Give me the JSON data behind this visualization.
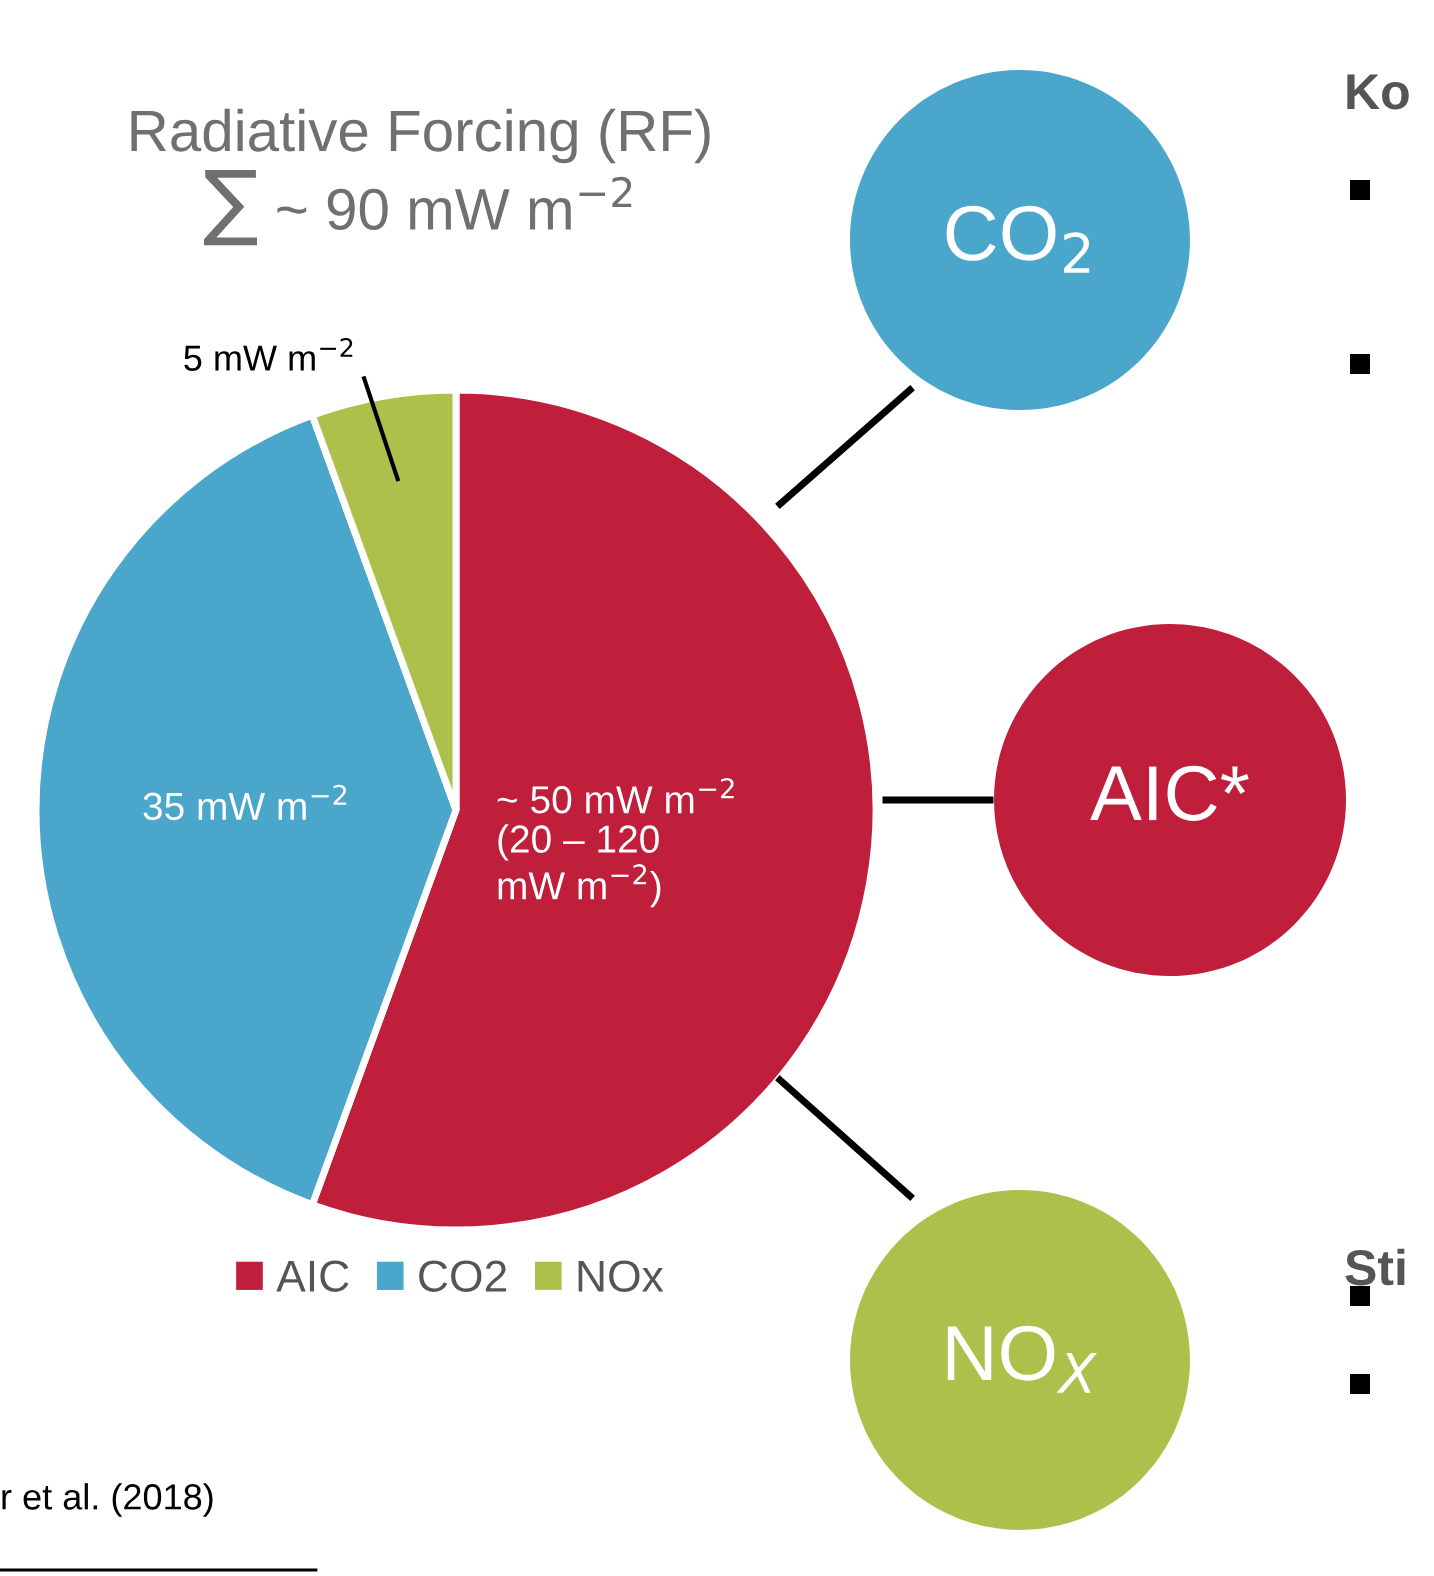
{
  "chart_data": {
    "type": "pie",
    "title": "Radiative Forcing (RF)",
    "subtitle": "∑ ~ 90 mW m$^{−2}$",
    "categories": [
      "AIC",
      "CO2",
      "NOx"
    ],
    "values": [
      50,
      35,
      5
    ],
    "colors": [
      "#c01f3c",
      "#4ba6cc",
      "#adc04b"
    ],
    "value_labels": [
      "~ 50 mW m$^{−2}$\n(20 – 120\nmW m$^{−2}$)",
      "35 mW m$^{−2}$",
      "5 mW m$^{−2}$"
    ],
    "legend": "bottom",
    "annotations": [
      "CO$_{2}$",
      "AIC*",
      "NO$_{X}$",
      "Ko",
      "Sti",
      "r et al. (2018)"
    ]
  }
}
